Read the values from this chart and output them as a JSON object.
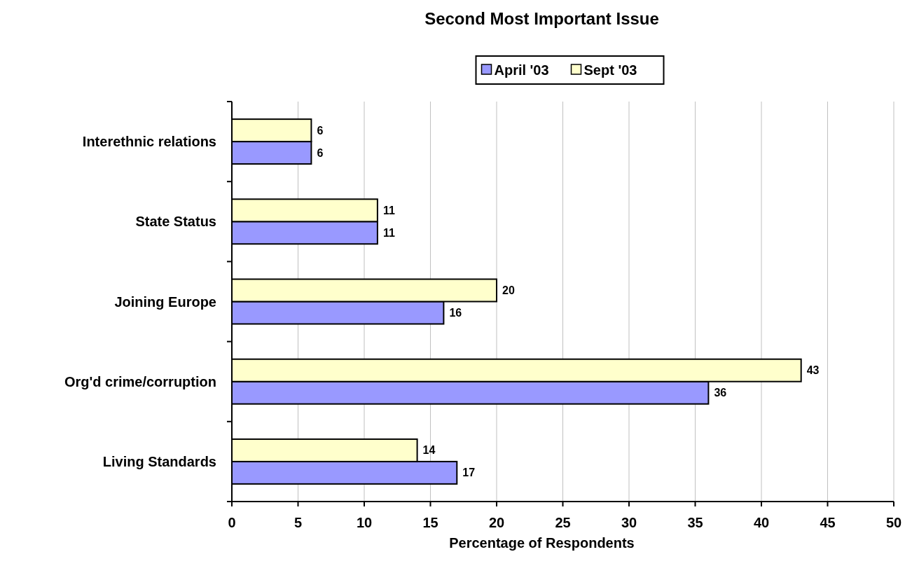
{
  "chart_data": {
    "type": "bar",
    "orientation": "horizontal",
    "title": "Second Most Important Issue",
    "xlabel": "Percentage of Respondents",
    "categories": [
      "Interethnic relations",
      "State Status",
      "Joining Europe",
      "Org'd crime/corruption",
      "Living Standards"
    ],
    "series": [
      {
        "name": "April '03",
        "color": "#9999ff",
        "values": [
          6,
          11,
          16,
          36,
          17
        ]
      },
      {
        "name": "Sept '03",
        "color": "#ffffcc",
        "values": [
          6,
          11,
          20,
          43,
          14
        ]
      }
    ],
    "xlim": [
      0,
      50
    ],
    "xticks": [
      0,
      5,
      10,
      15,
      20,
      25,
      30,
      35,
      40,
      45,
      50
    ],
    "grid": "x",
    "legend": "top",
    "data_labels": true
  }
}
